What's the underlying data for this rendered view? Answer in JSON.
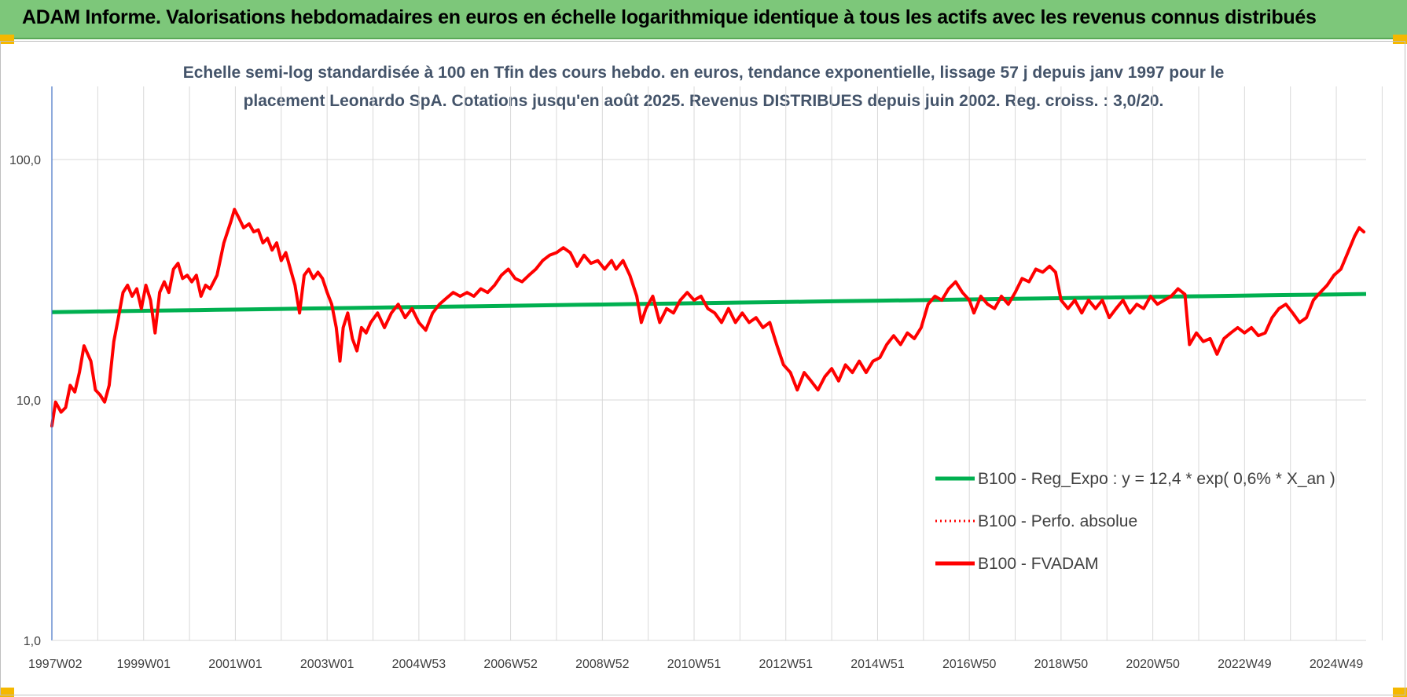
{
  "page": {
    "banner_title": "ADAM Informe. Valorisations hebdomadaires en euros en échelle logarithmique identique à tous les actifs avec les revenus connus distribués"
  },
  "colors": {
    "banner_bg": "#7dc77a",
    "corner_accent": "#f5b800",
    "reg_line": "#00b050",
    "fvadam_line": "#ff0000",
    "perfo_line": "#ff0000",
    "y_axis": "#4472c4",
    "grid": "#d9d9d9"
  },
  "chart_data": {
    "type": "line",
    "title_lines": [
      "Echelle semi-log standardisée à 100 en Tfin des cours hebdo. en euros, tendance exponentielle, lissage 57 j depuis janv 1997 pour le",
      "placement Leonardo SpA. Cotations jusqu'en août 2025. Revenus DISTRIBUES depuis juin 2002. Reg. croiss. : 3,0/20."
    ],
    "y_scale": "log",
    "ylim": [
      1,
      100
    ],
    "y_ticks": [
      {
        "value": 1,
        "label": "1,0"
      },
      {
        "value": 10,
        "label": "10,0"
      },
      {
        "value": 100,
        "label": "100,0"
      }
    ],
    "x_range": [
      1997.0,
      2025.65
    ],
    "x_ticks": [
      {
        "x": 1997.0,
        "label": "1997W02"
      },
      {
        "x": 1999.0,
        "label": "1999W01"
      },
      {
        "x": 2001.0,
        "label": "2001W01"
      },
      {
        "x": 2003.0,
        "label": "2003W01"
      },
      {
        "x": 2005.0,
        "label": "2004W53"
      },
      {
        "x": 2007.0,
        "label": "2006W52"
      },
      {
        "x": 2009.0,
        "label": "2008W52"
      },
      {
        "x": 2011.0,
        "label": "2010W51"
      },
      {
        "x": 2013.0,
        "label": "2012W51"
      },
      {
        "x": 2015.0,
        "label": "2014W51"
      },
      {
        "x": 2017.0,
        "label": "2016W50"
      },
      {
        "x": 2019.0,
        "label": "2018W50"
      },
      {
        "x": 2021.0,
        "label": "2020W50"
      },
      {
        "x": 2023.0,
        "label": "2022W49"
      },
      {
        "x": 2025.0,
        "label": "2024W49"
      }
    ],
    "grid_vertical": true,
    "grid_horizontal": true,
    "legend_position": "bottom-right",
    "series": [
      {
        "name": "B100 - Reg_Expo : y = 12,4 * exp( 0,6% *  X_an )",
        "style": "solid",
        "color": "#00b050",
        "points": [
          [
            1997.0,
            23.2
          ],
          [
            2025.65,
            27.6
          ]
        ]
      },
      {
        "name": "B100 - Perfo. absolue",
        "style": "dotted",
        "color": "#ff0000",
        "points": []
      },
      {
        "name": "B100 - FVADAM",
        "style": "solid",
        "color": "#ff0000",
        "points": [
          [
            1997.0,
            7.8
          ],
          [
            1997.08,
            9.8
          ],
          [
            1997.2,
            8.9
          ],
          [
            1997.3,
            9.3
          ],
          [
            1997.4,
            11.5
          ],
          [
            1997.5,
            10.8
          ],
          [
            1997.6,
            13.0
          ],
          [
            1997.7,
            16.8
          ],
          [
            1997.85,
            14.5
          ],
          [
            1997.95,
            11.0
          ],
          [
            1998.05,
            10.5
          ],
          [
            1998.15,
            9.8
          ],
          [
            1998.25,
            11.5
          ],
          [
            1998.35,
            17.5
          ],
          [
            1998.45,
            22.0
          ],
          [
            1998.55,
            28.0
          ],
          [
            1998.65,
            30.0
          ],
          [
            1998.75,
            27.0
          ],
          [
            1998.85,
            29.0
          ],
          [
            1998.95,
            24.0
          ],
          [
            1999.05,
            30.0
          ],
          [
            1999.15,
            26.0
          ],
          [
            1999.25,
            19.0
          ],
          [
            1999.35,
            28.0
          ],
          [
            1999.45,
            31.0
          ],
          [
            1999.55,
            28.0
          ],
          [
            1999.65,
            35.0
          ],
          [
            1999.75,
            37.0
          ],
          [
            1999.85,
            32.0
          ],
          [
            1999.95,
            33.0
          ],
          [
            2000.05,
            31.0
          ],
          [
            2000.15,
            33.0
          ],
          [
            2000.25,
            27.0
          ],
          [
            2000.35,
            30.0
          ],
          [
            2000.45,
            29.0
          ],
          [
            2000.6,
            33.0
          ],
          [
            2000.75,
            45.0
          ],
          [
            2000.9,
            55.0
          ],
          [
            2000.98,
            62.0
          ],
          [
            2001.08,
            57.0
          ],
          [
            2001.18,
            52.0
          ],
          [
            2001.3,
            54.0
          ],
          [
            2001.4,
            50.0
          ],
          [
            2001.5,
            51.0
          ],
          [
            2001.6,
            45.0
          ],
          [
            2001.7,
            47.0
          ],
          [
            2001.8,
            42.0
          ],
          [
            2001.9,
            45.0
          ],
          [
            2002.0,
            38.0
          ],
          [
            2002.1,
            41.0
          ],
          [
            2002.2,
            35.0
          ],
          [
            2002.3,
            30.0
          ],
          [
            2002.4,
            23.0
          ],
          [
            2002.5,
            33.0
          ],
          [
            2002.6,
            35.0
          ],
          [
            2002.7,
            32.0
          ],
          [
            2002.8,
            34.0
          ],
          [
            2002.9,
            32.0
          ],
          [
            2003.0,
            28.0
          ],
          [
            2003.1,
            25.0
          ],
          [
            2003.2,
            20.0
          ],
          [
            2003.28,
            14.5
          ],
          [
            2003.35,
            20.0
          ],
          [
            2003.45,
            23.0
          ],
          [
            2003.55,
            18.0
          ],
          [
            2003.65,
            16.0
          ],
          [
            2003.75,
            20.0
          ],
          [
            2003.85,
            19.0
          ],
          [
            2003.95,
            21.0
          ],
          [
            2004.1,
            23.0
          ],
          [
            2004.25,
            20.0
          ],
          [
            2004.4,
            23.0
          ],
          [
            2004.55,
            25.0
          ],
          [
            2004.7,
            22.0
          ],
          [
            2004.85,
            24.0
          ],
          [
            2005.0,
            21.0
          ],
          [
            2005.15,
            19.5
          ],
          [
            2005.3,
            23.0
          ],
          [
            2005.45,
            25.0
          ],
          [
            2005.6,
            26.5
          ],
          [
            2005.75,
            28.0
          ],
          [
            2005.9,
            27.0
          ],
          [
            2006.05,
            28.0
          ],
          [
            2006.2,
            27.0
          ],
          [
            2006.35,
            29.0
          ],
          [
            2006.5,
            28.0
          ],
          [
            2006.65,
            30.0
          ],
          [
            2006.8,
            33.0
          ],
          [
            2006.95,
            35.0
          ],
          [
            2007.1,
            32.0
          ],
          [
            2007.25,
            31.0
          ],
          [
            2007.4,
            33.0
          ],
          [
            2007.55,
            35.0
          ],
          [
            2007.7,
            38.0
          ],
          [
            2007.85,
            40.0
          ],
          [
            2008.0,
            41.0
          ],
          [
            2008.15,
            43.0
          ],
          [
            2008.3,
            41.0
          ],
          [
            2008.45,
            36.0
          ],
          [
            2008.6,
            40.0
          ],
          [
            2008.75,
            37.0
          ],
          [
            2008.9,
            38.0
          ],
          [
            2009.05,
            35.0
          ],
          [
            2009.2,
            38.0
          ],
          [
            2009.3,
            35.0
          ],
          [
            2009.45,
            38.0
          ],
          [
            2009.6,
            33.0
          ],
          [
            2009.75,
            27.0
          ],
          [
            2009.85,
            21.0
          ],
          [
            2009.95,
            24.0
          ],
          [
            2010.1,
            27.0
          ],
          [
            2010.25,
            21.0
          ],
          [
            2010.4,
            24.0
          ],
          [
            2010.55,
            23.0
          ],
          [
            2010.7,
            26.0
          ],
          [
            2010.85,
            28.0
          ],
          [
            2011.0,
            26.0
          ],
          [
            2011.15,
            27.0
          ],
          [
            2011.3,
            24.0
          ],
          [
            2011.45,
            23.0
          ],
          [
            2011.6,
            21.0
          ],
          [
            2011.75,
            24.0
          ],
          [
            2011.9,
            21.0
          ],
          [
            2012.05,
            23.0
          ],
          [
            2012.2,
            21.0
          ],
          [
            2012.35,
            22.0
          ],
          [
            2012.5,
            20.0
          ],
          [
            2012.65,
            21.0
          ],
          [
            2012.8,
            17.0
          ],
          [
            2012.95,
            14.0
          ],
          [
            2013.1,
            13.0
          ],
          [
            2013.25,
            11.0
          ],
          [
            2013.4,
            13.0
          ],
          [
            2013.55,
            12.0
          ],
          [
            2013.7,
            11.0
          ],
          [
            2013.85,
            12.5
          ],
          [
            2014.0,
            13.5
          ],
          [
            2014.15,
            12.0
          ],
          [
            2014.3,
            14.0
          ],
          [
            2014.45,
            13.0
          ],
          [
            2014.6,
            14.5
          ],
          [
            2014.75,
            13.0
          ],
          [
            2014.9,
            14.5
          ],
          [
            2015.05,
            15.0
          ],
          [
            2015.2,
            17.0
          ],
          [
            2015.35,
            18.5
          ],
          [
            2015.5,
            17.0
          ],
          [
            2015.65,
            19.0
          ],
          [
            2015.8,
            18.0
          ],
          [
            2015.95,
            20.0
          ],
          [
            2016.1,
            25.0
          ],
          [
            2016.25,
            27.0
          ],
          [
            2016.4,
            26.0
          ],
          [
            2016.55,
            29.0
          ],
          [
            2016.7,
            31.0
          ],
          [
            2016.85,
            28.0
          ],
          [
            2017.0,
            26.0
          ],
          [
            2017.1,
            23.0
          ],
          [
            2017.25,
            27.0
          ],
          [
            2017.4,
            25.0
          ],
          [
            2017.55,
            24.0
          ],
          [
            2017.7,
            27.0
          ],
          [
            2017.85,
            25.0
          ],
          [
            2018.0,
            28.0
          ],
          [
            2018.15,
            32.0
          ],
          [
            2018.3,
            31.0
          ],
          [
            2018.45,
            35.0
          ],
          [
            2018.6,
            34.0
          ],
          [
            2018.75,
            36.0
          ],
          [
            2018.88,
            34.0
          ],
          [
            2019.0,
            26.0
          ],
          [
            2019.15,
            24.0
          ],
          [
            2019.3,
            26.0
          ],
          [
            2019.45,
            23.0
          ],
          [
            2019.6,
            26.0
          ],
          [
            2019.75,
            24.0
          ],
          [
            2019.9,
            26.0
          ],
          [
            2020.05,
            22.0
          ],
          [
            2020.2,
            24.0
          ],
          [
            2020.35,
            26.0
          ],
          [
            2020.5,
            23.0
          ],
          [
            2020.65,
            25.0
          ],
          [
            2020.8,
            24.0
          ],
          [
            2020.95,
            27.0
          ],
          [
            2021.1,
            25.0
          ],
          [
            2021.25,
            26.0
          ],
          [
            2021.4,
            27.0
          ],
          [
            2021.55,
            29.0
          ],
          [
            2021.7,
            27.5
          ],
          [
            2021.8,
            17.0
          ],
          [
            2021.95,
            19.0
          ],
          [
            2022.1,
            17.5
          ],
          [
            2022.25,
            18.0
          ],
          [
            2022.4,
            15.5
          ],
          [
            2022.55,
            18.0
          ],
          [
            2022.7,
            19.0
          ],
          [
            2022.85,
            20.0
          ],
          [
            2023.0,
            19.0
          ],
          [
            2023.15,
            20.0
          ],
          [
            2023.3,
            18.5
          ],
          [
            2023.45,
            19.0
          ],
          [
            2023.6,
            22.0
          ],
          [
            2023.75,
            24.0
          ],
          [
            2023.9,
            25.0
          ],
          [
            2024.05,
            23.0
          ],
          [
            2024.2,
            21.0
          ],
          [
            2024.35,
            22.0
          ],
          [
            2024.5,
            26.0
          ],
          [
            2024.65,
            28.0
          ],
          [
            2024.8,
            30.0
          ],
          [
            2024.95,
            33.0
          ],
          [
            2025.1,
            35.0
          ],
          [
            2025.25,
            41.0
          ],
          [
            2025.4,
            48.0
          ],
          [
            2025.5,
            52.0
          ],
          [
            2025.6,
            50.0
          ]
        ]
      }
    ]
  }
}
